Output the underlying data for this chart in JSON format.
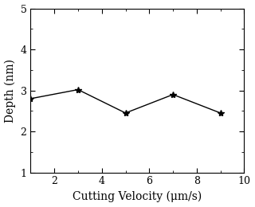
{
  "x": [
    1,
    3,
    5,
    7,
    9
  ],
  "y": [
    2.8,
    3.02,
    2.45,
    2.9,
    2.45
  ],
  "xlabel": "Cutting Velocity (μm/s)",
  "ylabel": "Depth (nm)",
  "xlim": [
    1,
    10
  ],
  "ylim": [
    1,
    5
  ],
  "xticks": [
    2,
    4,
    6,
    8,
    10
  ],
  "yticks": [
    1,
    2,
    3,
    4,
    5
  ],
  "line_color": "#000000",
  "marker": "*",
  "marker_size": 6,
  "linewidth": 1.0,
  "background_color": "#ffffff",
  "tick_fontsize": 9,
  "label_fontsize": 10,
  "figsize": [
    3.2,
    2.6
  ],
  "dpi": 100
}
